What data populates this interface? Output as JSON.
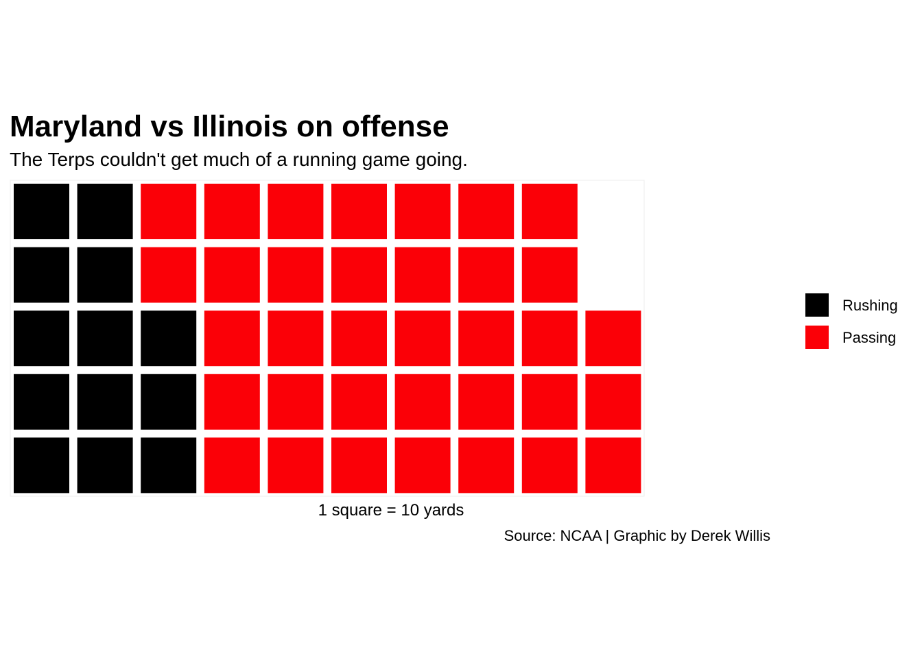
{
  "chart_data": {
    "type": "waffle",
    "title": "Maryland vs Illinois on offense",
    "subtitle": "The Terps couldn't get much of a running game going.",
    "xlabel": "1 square = 10 yards",
    "caption": "Source: NCAA | Graphic by Derek Willis",
    "unit_value": 10,
    "unit_label": "yards",
    "legend_position": "right",
    "groups": [
      {
        "rows": 2,
        "segments": [
          {
            "category": "Rushing",
            "squares": 4
          },
          {
            "category": "Passing",
            "squares": 14
          }
        ]
      },
      {
        "rows": 3,
        "segments": [
          {
            "category": "Rushing",
            "squares": 9
          },
          {
            "category": "Passing",
            "squares": 21
          }
        ]
      }
    ],
    "legend": [
      {
        "name": "Rushing",
        "color": "#000000"
      },
      {
        "name": "Passing",
        "color": "#fb0007"
      }
    ]
  }
}
